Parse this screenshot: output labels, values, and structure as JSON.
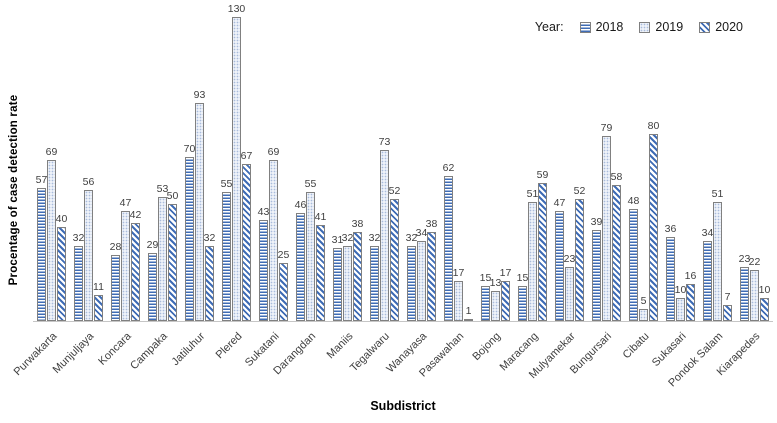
{
  "chart_data": {
    "type": "bar",
    "title": "",
    "xlabel": "Subdistrict",
    "ylabel": "Procentage of case detection rate",
    "legend_title": "Year:",
    "legend_position": "top-right",
    "grid": false,
    "ylim": [
      0,
      135
    ],
    "categories": [
      "Purwakarta",
      "Munjuljaya",
      "Koncara",
      "Campaka",
      "Jatiluhur",
      "Plered",
      "Sukatani",
      "Darangdan",
      "Maniis",
      "Tegalwaru",
      "Wanayasa",
      "Pasawahan",
      "Bojong",
      "Maracang",
      "Mulyamekar",
      "Bungursari",
      "Cibatu",
      "Sukasari",
      "Pondok Salam",
      "Kiarapedes"
    ],
    "series": [
      {
        "name": "2018",
        "pattern": "horizontal-lines",
        "values": [
          57,
          32,
          28,
          29,
          70,
          55,
          43,
          46,
          31,
          32,
          32,
          62,
          15,
          15,
          47,
          39,
          48,
          36,
          34,
          23
        ]
      },
      {
        "name": "2019",
        "pattern": "dots",
        "values": [
          69,
          56,
          47,
          53,
          93,
          130,
          69,
          55,
          32,
          73,
          34,
          17,
          13,
          51,
          23,
          79,
          5,
          10,
          51,
          22
        ]
      },
      {
        "name": "2020",
        "pattern": "diagonal-stripes",
        "values": [
          40,
          11,
          42,
          50,
          32,
          67,
          25,
          41,
          38,
          52,
          38,
          1,
          17,
          59,
          52,
          58,
          80,
          16,
          7,
          10
        ]
      }
    ],
    "colors": {
      "stripe_blue": "#3f6cb5",
      "dot_fill_bg": "#eef2f9",
      "dot_color": "#a9bcdc",
      "bar_outline": "#808080",
      "label_text": "#404040",
      "axis_line": "#c6c6c6"
    }
  }
}
